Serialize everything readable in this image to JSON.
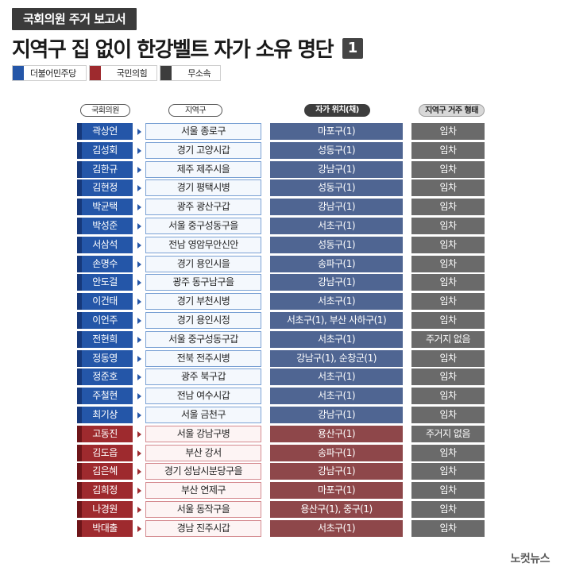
{
  "header": {
    "tag": "국회의원 주거 보고서",
    "title": "지역구 집 없이 한강벨트 자가 소유 명단",
    "page_number": "1"
  },
  "legend": [
    {
      "label": "더불어민주당",
      "color": "#2456a8"
    },
    {
      "label": "국민의힘",
      "color": "#9e2a2e"
    },
    {
      "label": "무소속",
      "color": "#3d3d3d"
    }
  ],
  "columns": {
    "member": "국회의원",
    "district": "지역구",
    "owned": "자가 위치(채)",
    "residence": "지역구 거주 형태"
  },
  "rows": [
    {
      "party": "minjoo",
      "member": "곽상언",
      "district": "서울 종로구",
      "owned": "마포구(1)",
      "residence": "임차"
    },
    {
      "party": "minjoo",
      "member": "김성회",
      "district": "경기 고양시갑",
      "owned": "성동구(1)",
      "residence": "임차"
    },
    {
      "party": "minjoo",
      "member": "김한규",
      "district": "제주 제주시을",
      "owned": "강남구(1)",
      "residence": "임차"
    },
    {
      "party": "minjoo",
      "member": "김현정",
      "district": "경기 평택시병",
      "owned": "성동구(1)",
      "residence": "임차"
    },
    {
      "party": "minjoo",
      "member": "박균택",
      "district": "광주 광산구갑",
      "owned": "강남구(1)",
      "residence": "임차"
    },
    {
      "party": "minjoo",
      "member": "박성준",
      "district": "서울 중구성동구을",
      "owned": "서초구(1)",
      "residence": "임차"
    },
    {
      "party": "minjoo",
      "member": "서삼석",
      "district": "전남 영암무안신안",
      "owned": "성동구(1)",
      "residence": "임차"
    },
    {
      "party": "minjoo",
      "member": "손명수",
      "district": "경기 용인시을",
      "owned": "송파구(1)",
      "residence": "임차"
    },
    {
      "party": "minjoo",
      "member": "안도걸",
      "district": "광주 동구남구을",
      "owned": "강남구(1)",
      "residence": "임차"
    },
    {
      "party": "minjoo",
      "member": "이건태",
      "district": "경기 부천시병",
      "owned": "서초구(1)",
      "residence": "임차"
    },
    {
      "party": "minjoo",
      "member": "이언주",
      "district": "경기 용인시정",
      "owned": "서초구(1), 부산 사하구(1)",
      "residence": "임차"
    },
    {
      "party": "minjoo",
      "member": "전현희",
      "district": "서울 중구성동구갑",
      "owned": "서초구(1)",
      "residence": "주거지 없음"
    },
    {
      "party": "minjoo",
      "member": "정동영",
      "district": "전북 전주시병",
      "owned": "강남구(1), 순창군(1)",
      "residence": "임차"
    },
    {
      "party": "minjoo",
      "member": "정준호",
      "district": "광주 북구갑",
      "owned": "서초구(1)",
      "residence": "임차"
    },
    {
      "party": "minjoo",
      "member": "주철현",
      "district": "전남 여수시갑",
      "owned": "서초구(1)",
      "residence": "임차"
    },
    {
      "party": "minjoo",
      "member": "최기상",
      "district": "서울 금천구",
      "owned": "강남구(1)",
      "residence": "임차"
    },
    {
      "party": "gukmin",
      "member": "고동진",
      "district": "서울 강남구병",
      "owned": "용산구(1)",
      "residence": "주거지 없음"
    },
    {
      "party": "gukmin",
      "member": "김도읍",
      "district": "부산 강서",
      "owned": "송파구(1)",
      "residence": "임차"
    },
    {
      "party": "gukmin",
      "member": "김은혜",
      "district": "경기 성남시분당구을",
      "owned": "강남구(1)",
      "residence": "임차"
    },
    {
      "party": "gukmin",
      "member": "김희정",
      "district": "부산 연제구",
      "owned": "마포구(1)",
      "residence": "임차"
    },
    {
      "party": "gukmin",
      "member": "나경원",
      "district": "서울 동작구을",
      "owned": "용산구(1), 중구(1)",
      "residence": "임차"
    },
    {
      "party": "gukmin",
      "member": "박대출",
      "district": "경남 진주시갑",
      "owned": "서초구(1)",
      "residence": "임차"
    }
  ],
  "footer": {
    "logo": "노컷뉴스"
  }
}
